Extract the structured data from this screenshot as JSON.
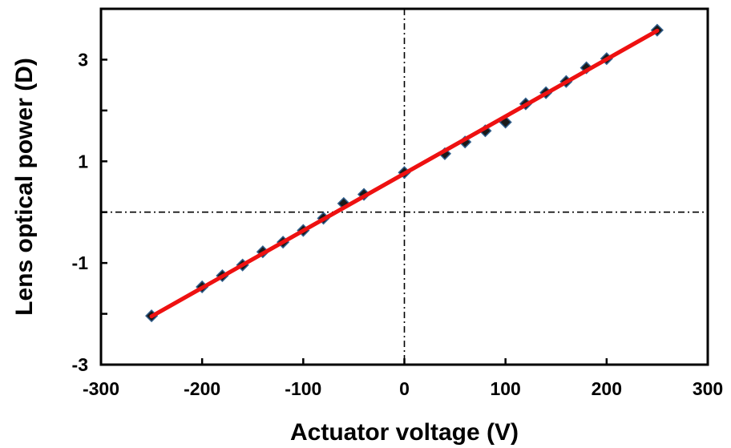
{
  "chart_data": {
    "type": "scatter",
    "title": "",
    "xlabel": "Actuator voltage (V)",
    "ylabel": "Lens optical power (D)",
    "xlim": [
      -300,
      300
    ],
    "ylim": [
      -3,
      4
    ],
    "x_ticks": [
      -300,
      -200,
      -100,
      0,
      100,
      200,
      300
    ],
    "x_tick_labels": [
      "-300",
      "-200",
      "-100",
      "0",
      "100",
      "200",
      "300"
    ],
    "y_major_ticks": [
      -3,
      -1,
      1,
      3
    ],
    "y_tick_labels": [
      "-3",
      "-1",
      "1",
      "3"
    ],
    "y_minor_ticks": [
      -2,
      0,
      2
    ],
    "grid": false,
    "reference_lines": {
      "x": 0,
      "y": 0,
      "style": "dash-dot"
    },
    "series": [
      {
        "style": "marker",
        "marker": "diamond",
        "color": "#1a1a1a",
        "edge_color": "#2f5d8a",
        "x": [
          -250,
          -200,
          -180,
          -160,
          -140,
          -120,
          -100,
          -80,
          -60,
          -40,
          0,
          40,
          60,
          80,
          100,
          120,
          140,
          160,
          180,
          200,
          250
        ],
        "y": [
          -2.04,
          -1.47,
          -1.25,
          -1.04,
          -0.78,
          -0.59,
          -0.36,
          -0.12,
          0.17,
          0.35,
          0.78,
          1.15,
          1.38,
          1.6,
          1.77,
          2.13,
          2.35,
          2.57,
          2.84,
          3.02,
          3.58
        ]
      },
      {
        "style": "line",
        "fit": "linear",
        "color": "#ee1111",
        "x": [
          -250,
          250
        ],
        "y": [
          -2.05,
          3.57
        ]
      }
    ]
  }
}
